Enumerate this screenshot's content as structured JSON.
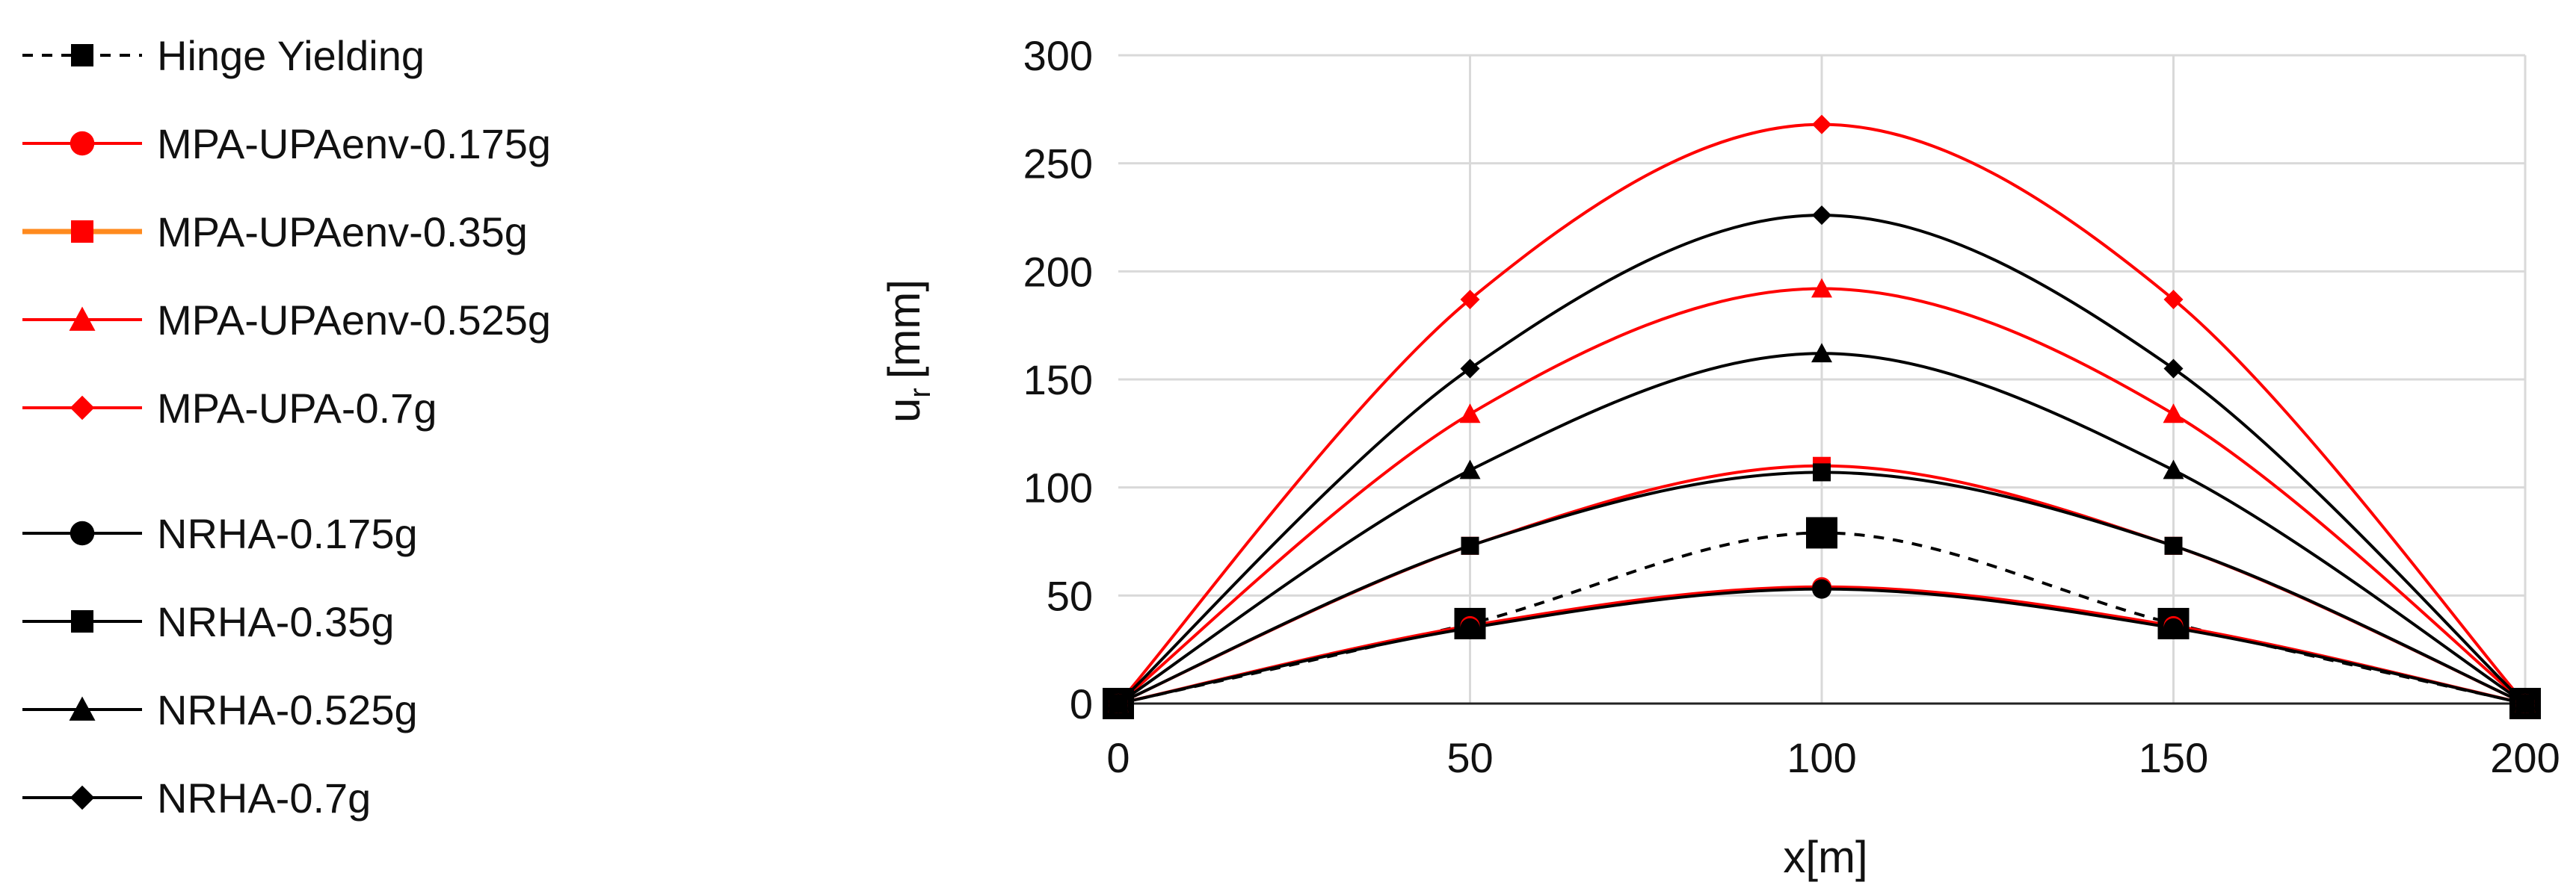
{
  "chart_data": {
    "type": "line",
    "title": "",
    "xlabel": "x[m]",
    "ylabel_main": "u",
    "ylabel_sub": "r",
    "ylabel_unit": "[mm]",
    "xlim": [
      0,
      200
    ],
    "ylim": [
      0,
      300
    ],
    "x_ticks": [
      0,
      50,
      100,
      150,
      200
    ],
    "y_ticks": [
      0,
      50,
      100,
      150,
      200,
      250,
      300
    ],
    "grid": true,
    "legend_position": "left",
    "x": [
      0,
      50,
      100,
      150,
      200
    ],
    "series": [
      {
        "name": "Hinge Yielding",
        "values": [
          0,
          37,
          79,
          37,
          0
        ],
        "color": "#000000",
        "dashed": true,
        "marker": "square-large",
        "group": 1
      },
      {
        "name": "MPA-UPAenv-0.175g",
        "values": [
          0,
          36,
          54,
          36,
          0
        ],
        "color": "#ff0000",
        "dashed": false,
        "marker": "circle",
        "group": 1
      },
      {
        "name": "MPA-UPAenv-0.35g",
        "values": [
          0,
          73,
          110,
          73,
          0
        ],
        "color": "#ff0000",
        "legend_color": "#ff8a1e",
        "dashed": false,
        "marker": "square",
        "group": 1
      },
      {
        "name": "MPA-UPAenv-0.525g",
        "values": [
          0,
          134,
          192,
          134,
          0
        ],
        "color": "#ff0000",
        "dashed": false,
        "marker": "triangle",
        "group": 1
      },
      {
        "name": "MPA-UPA-0.7g",
        "values": [
          0,
          187,
          268,
          187,
          0
        ],
        "color": "#ff0000",
        "dashed": false,
        "marker": "diamond",
        "group": 1
      },
      {
        "name": "NRHA-0.175g",
        "values": [
          0,
          35,
          53,
          35,
          0
        ],
        "color": "#000000",
        "dashed": false,
        "marker": "circle",
        "group": 2
      },
      {
        "name": "NRHA-0.35g",
        "values": [
          0,
          73,
          107,
          73,
          0
        ],
        "color": "#000000",
        "dashed": false,
        "marker": "square",
        "group": 2
      },
      {
        "name": "NRHA-0.525g",
        "values": [
          0,
          108,
          162,
          108,
          0
        ],
        "color": "#000000",
        "dashed": false,
        "marker": "triangle",
        "group": 2
      },
      {
        "name": "NRHA-0.7g",
        "values": [
          0,
          155,
          226,
          155,
          0
        ],
        "color": "#000000",
        "dashed": false,
        "marker": "diamond",
        "group": 2
      }
    ]
  }
}
